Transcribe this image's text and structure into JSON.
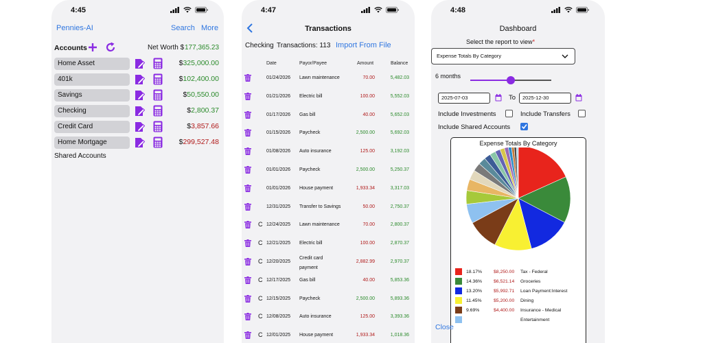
{
  "colors": {
    "accent": "#2f76e0",
    "purple": "#8a2be2",
    "positive": "#2a8a2a",
    "negative": "#b01a1a"
  },
  "screen1": {
    "time": "4:45",
    "app_name": "Pennies-AI",
    "search_label": "Search",
    "more_label": "More",
    "accounts_title": "Accounts",
    "net_worth_label": "Net Worth $",
    "net_worth_value": "177,365.23",
    "accounts": [
      {
        "name": "Home Asset",
        "dollar": "$",
        "amount": "325,000.00",
        "sign": "positive"
      },
      {
        "name": "401k",
        "dollar": "$",
        "amount": "102,400.00",
        "sign": "positive"
      },
      {
        "name": "Savings",
        "dollar": "$",
        "amount": "50,550.00",
        "sign": "positive"
      },
      {
        "name": "Checking",
        "dollar": "$",
        "amount": "2,800.37",
        "sign": "positive"
      },
      {
        "name": "Credit Card",
        "dollar": "$",
        "amount": "3,857.66",
        "sign": "negative"
      },
      {
        "name": "Home Mortgage",
        "dollar": "$",
        "amount": "299,527.48",
        "sign": "negative"
      }
    ],
    "shared_accounts_label": "Shared Accounts"
  },
  "screen2": {
    "time": "4:47",
    "title": "Transactions",
    "account_label": "Checking",
    "count_label": "Transactions: 113",
    "import_label": "Import From File",
    "headers": {
      "date": "Date",
      "payee": "Payor/Payee",
      "amount": "Amount",
      "balance": "Balance"
    },
    "rows": [
      {
        "c": "",
        "date": "01/24/2026",
        "payee": "Lawn maintenance",
        "payee2": "",
        "amount": "70.00",
        "amount_sign": "negative",
        "balance": "5,482.03"
      },
      {
        "c": "",
        "date": "01/21/2026",
        "payee": "Electric bill",
        "payee2": "",
        "amount": "100.00",
        "amount_sign": "negative",
        "balance": "5,552.03"
      },
      {
        "c": "",
        "date": "01/17/2026",
        "payee": "Gas bill",
        "payee2": "",
        "amount": "40.00",
        "amount_sign": "negative",
        "balance": "5,652.03"
      },
      {
        "c": "",
        "date": "01/15/2026",
        "payee": "Paycheck",
        "payee2": "",
        "amount": "2,500.00",
        "amount_sign": "positive",
        "balance": "5,692.03"
      },
      {
        "c": "",
        "date": "01/08/2026",
        "payee": "Auto insurance",
        "payee2": "",
        "amount": "125.00",
        "amount_sign": "negative",
        "balance": "3,192.03"
      },
      {
        "c": "",
        "date": "01/01/2026",
        "payee": "Paycheck",
        "payee2": "",
        "amount": "2,500.00",
        "amount_sign": "positive",
        "balance": "5,250.37"
      },
      {
        "c": "",
        "date": "01/01/2026",
        "payee": "House payment",
        "payee2": "",
        "amount": "1,933.34",
        "amount_sign": "negative",
        "balance": "3,317.03"
      },
      {
        "c": "",
        "date": "12/31/2025",
        "payee": "Transfer to Savings",
        "payee2": "",
        "amount": "50.00",
        "amount_sign": "negative",
        "balance": "2,750.37"
      },
      {
        "c": "C",
        "date": "12/24/2025",
        "payee": "Lawn maintenance",
        "payee2": "",
        "amount": "70.00",
        "amount_sign": "negative",
        "balance": "2,800.37"
      },
      {
        "c": "C",
        "date": "12/21/2025",
        "payee": "Electric bill",
        "payee2": "",
        "amount": "100.00",
        "amount_sign": "negative",
        "balance": "2,870.37"
      },
      {
        "c": "C",
        "date": "12/20/2025",
        "payee": "Credit card",
        "payee2": "payment",
        "amount": "2,882.99",
        "amount_sign": "negative",
        "balance": "2,970.37"
      },
      {
        "c": "C",
        "date": "12/17/2025",
        "payee": "Gas bill",
        "payee2": "",
        "amount": "40.00",
        "amount_sign": "negative",
        "balance": "5,853.36"
      },
      {
        "c": "C",
        "date": "12/15/2025",
        "payee": "Paycheck",
        "payee2": "",
        "amount": "2,500.00",
        "amount_sign": "positive",
        "balance": "5,893.36"
      },
      {
        "c": "C",
        "date": "12/08/2025",
        "payee": "Auto insurance",
        "payee2": "",
        "amount": "125.00",
        "amount_sign": "negative",
        "balance": "3,393.36"
      },
      {
        "c": "C",
        "date": "12/01/2025",
        "payee": "House payment",
        "payee2": "",
        "amount": "1,933.34",
        "amount_sign": "negative",
        "balance": "1,018.36"
      }
    ]
  },
  "screen3": {
    "time": "4:48",
    "title": "Dashboard",
    "select_label": "Select the report to view",
    "required_mark": "*",
    "report_value": "Expense Totals By Category",
    "range_label": "6 months",
    "slider_value": 0.5,
    "date_from": "2025-07-03",
    "to_label": "To",
    "date_to": "2025-12-30",
    "include_investments_label": "Include Investments",
    "include_investments": false,
    "include_transfers_label": "Include Transfers",
    "include_transfers": false,
    "include_shared_label": "Include Shared Accounts",
    "include_shared": true,
    "close_label": "Close"
  },
  "chart_data": {
    "type": "pie",
    "title": "Expense Totals By Category",
    "slices": [
      {
        "label": "Tax - Federal",
        "pct": "18.17%",
        "amount": "$8,250.00",
        "value": 18.17,
        "color": "#e8241c"
      },
      {
        "label": "Groceries",
        "pct": "14.36%",
        "amount": "$6,521.14",
        "value": 14.36,
        "color": "#3a8a3a"
      },
      {
        "label": "Loan Payment:Interest",
        "pct": "13.20%",
        "amount": "$5,992.71",
        "value": 13.2,
        "color": "#1229e0"
      },
      {
        "label": "Dining",
        "pct": "11.45%",
        "amount": "$5,200.00",
        "value": 11.45,
        "color": "#f8f032"
      },
      {
        "label": "Insurance - Medical",
        "pct": "9.69%",
        "amount": "$4,400.00",
        "value": 9.69,
        "color": "#7a3c18"
      },
      {
        "label": "Entertainment",
        "pct": "",
        "amount": "",
        "value": 6.0,
        "color": "#8ec1f0"
      },
      {
        "label": "",
        "pct": "",
        "amount": "",
        "value": 4.2,
        "color": "#a6c93a"
      },
      {
        "label": "",
        "pct": "",
        "amount": "",
        "value": 3.5,
        "color": "#e8b664"
      },
      {
        "label": "",
        "pct": "",
        "amount": "",
        "value": 3.0,
        "color": "#e2d8bc"
      },
      {
        "label": "",
        "pct": "",
        "amount": "",
        "value": 2.6,
        "color": "#7a7a7a"
      },
      {
        "label": "",
        "pct": "",
        "amount": "",
        "value": 2.3,
        "color": "#5a8a9a"
      },
      {
        "label": "",
        "pct": "",
        "amount": "",
        "value": 2.0,
        "color": "#3c5c96"
      },
      {
        "label": "",
        "pct": "",
        "amount": "",
        "value": 1.8,
        "color": "#8ac6a8"
      },
      {
        "label": "",
        "pct": "",
        "amount": "",
        "value": 1.6,
        "color": "#6464b4"
      },
      {
        "label": "",
        "pct": "",
        "amount": "",
        "value": 1.4,
        "color": "#d6c64a"
      },
      {
        "label": "",
        "pct": "",
        "amount": "",
        "value": 1.2,
        "color": "#9a6ab4"
      },
      {
        "label": "",
        "pct": "",
        "amount": "",
        "value": 1.0,
        "color": "#2c8cc8"
      },
      {
        "label": "",
        "pct": "",
        "amount": "",
        "value": 0.8,
        "color": "#c47a3a"
      },
      {
        "label": "",
        "pct": "",
        "amount": "",
        "value": 0.7,
        "color": "#4a4a4a"
      },
      {
        "label": "",
        "pct": "",
        "amount": "",
        "value": 0.6,
        "color": "#b8d8e8"
      }
    ]
  }
}
